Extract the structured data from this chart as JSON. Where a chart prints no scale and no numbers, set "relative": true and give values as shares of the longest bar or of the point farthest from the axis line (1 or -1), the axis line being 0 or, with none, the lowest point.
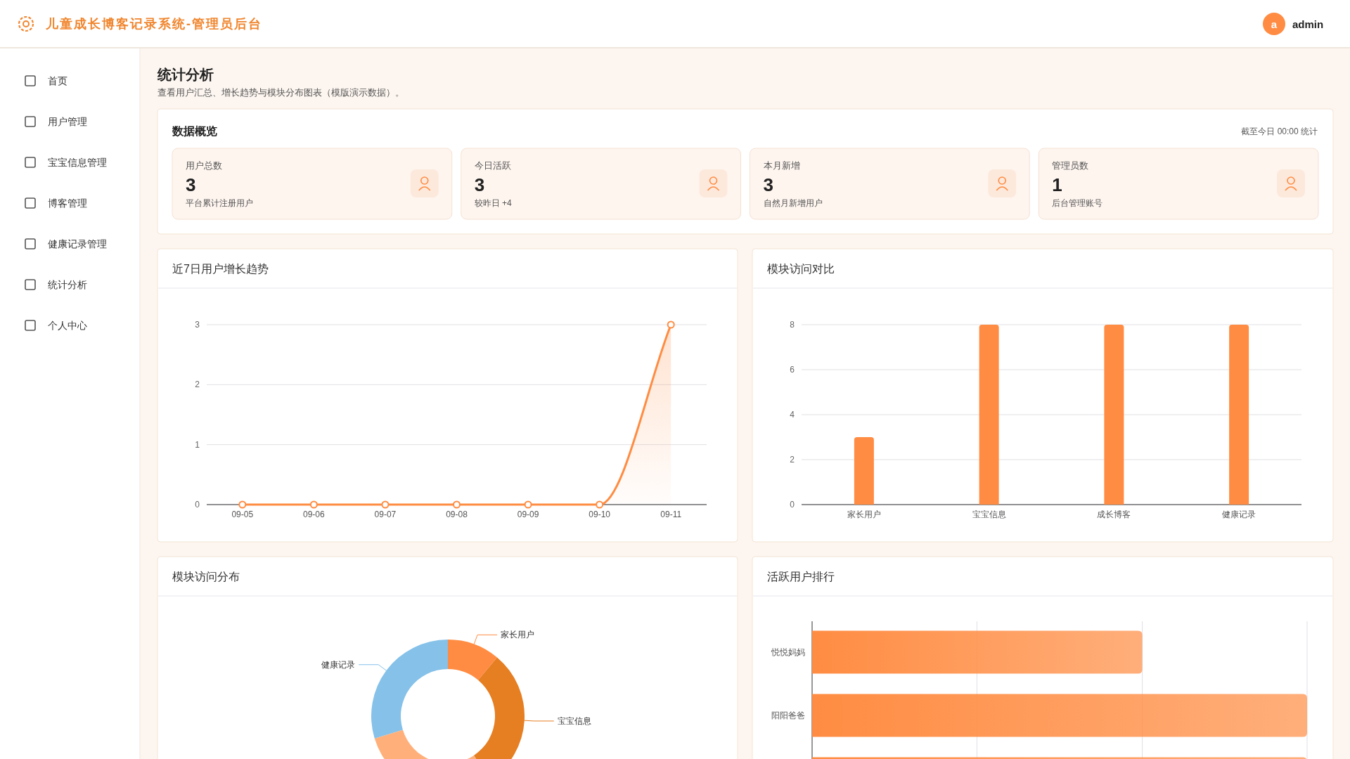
{
  "chart_data": [
    {
      "type": "other",
      "title": "儿童成长博客记录系统-管理员后台",
      "categories": [
        "首页",
        "用户管理",
        "宝宝信息管理",
        "博客管理",
        "健康记录管理",
        "统计分析",
        "个人中心"
      ],
      "annotations": [
        "a",
        "admin",
        "统计分析",
        "查看用户汇总、增长趋势与模块分布图表（模版演示数据）。"
      ]
    },
    {
      "type": "other",
      "title": "数据概览",
      "categories": [
        "用户总数",
        "今日活跃",
        "本月新增",
        "管理员数"
      ],
      "values": [
        3,
        3,
        3,
        1
      ],
      "data_labels": true,
      "annotations": [
        "截至今日 00:00 统计",
        "平台累计注册用户",
        "较昨日 +4",
        "自然月新增用户",
        "后台管理账号"
      ]
    },
    {
      "type": "area",
      "title": "近7日用户增长趋势",
      "categories": [
        "09-05",
        "09-06",
        "09-07",
        "09-08",
        "09-09",
        "09-10",
        "09-11"
      ],
      "values": [
        0,
        0,
        0,
        0,
        0,
        0,
        3
      ],
      "color": "#ff8c42",
      "ylim": [
        0,
        3
      ],
      "yticks": [
        0,
        1,
        2,
        3
      ],
      "grid": "y",
      "marker": "circle"
    },
    {
      "type": "bar",
      "title": "模块访问对比",
      "categories": [
        "家长用户",
        "宝宝信息",
        "成长博客",
        "健康记录"
      ],
      "values": [
        3,
        8,
        8,
        8
      ],
      "color": "#ff8c42",
      "ylim": [
        0,
        8
      ],
      "yticks": [
        0,
        2,
        4,
        6,
        8
      ],
      "grid": "y"
    },
    {
      "type": "donut",
      "title": "模块访问分布",
      "categories": [
        "家长用户",
        "宝宝信息",
        null,
        "健康记录"
      ],
      "values": [
        11.1,
        29.6,
        29.6,
        29.7
      ],
      "colors": [
        "#ff8c42",
        "#e67e22",
        "#ffb07a",
        "#85c1e9"
      ]
    },
    {
      "type": "bar",
      "orientation": "horizontal",
      "relative": true,
      "title": "活跃用户排行",
      "categories": [
        "悦悦妈妈",
        "阳阳爸爸",
        null
      ],
      "values": [
        0.667,
        1,
        1
      ],
      "color": "#ff8c42",
      "ref_lines": [
        {
          "axis": "x",
          "value": 0.333,
          "color": "#e0e0e6"
        },
        {
          "axis": "x",
          "value": 0.667,
          "color": "#e0e0e6"
        },
        {
          "axis": "x",
          "value": 1,
          "color": "#e0e0e6"
        }
      ]
    }
  ]
}
